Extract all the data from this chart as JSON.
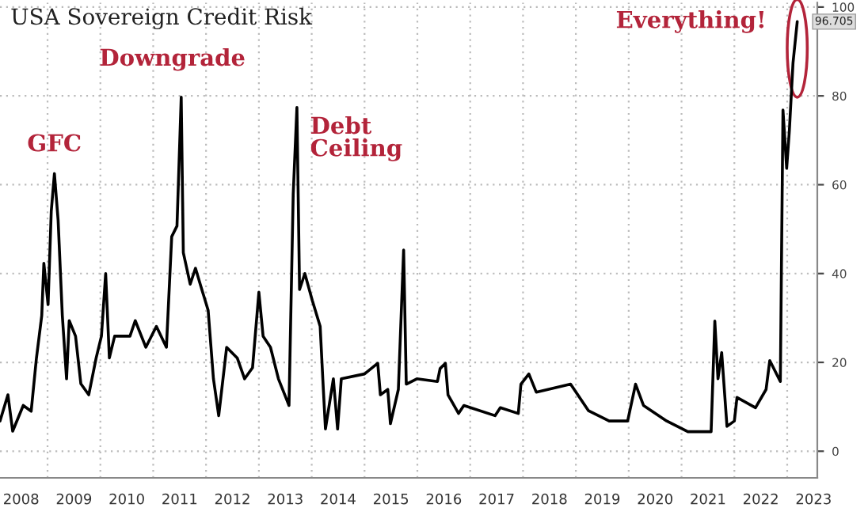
{
  "chart_data": {
    "type": "line",
    "title": "USA Sovereign Credit Risk",
    "x": [
      2008.1,
      2008.25,
      2008.34,
      2008.54,
      2008.69,
      2008.79,
      2008.89,
      2008.93,
      2009.01,
      2009.07,
      2009.13,
      2009.2,
      2009.28,
      2009.36,
      2009.41,
      2009.53,
      2009.63,
      2009.78,
      2009.92,
      2010.02,
      2010.1,
      2010.17,
      2010.27,
      2010.56,
      2010.66,
      2010.86,
      2011.06,
      2011.25,
      2011.35,
      2011.45,
      2011.53,
      2011.57,
      2011.7,
      2011.8,
      2011.89,
      2012.04,
      2012.14,
      2012.24,
      2012.39,
      2012.59,
      2012.73,
      2012.88,
      2013.0,
      2013.08,
      2013.22,
      2013.37,
      2013.57,
      2013.65,
      2013.72,
      2013.77,
      2013.87,
      2014.01,
      2014.16,
      2014.21,
      2014.26,
      2014.41,
      2014.49,
      2014.56,
      2015.0,
      2015.25,
      2015.3,
      2015.44,
      2015.49,
      2015.64,
      2015.74,
      2015.79,
      2015.99,
      2016.38,
      2016.43,
      2016.53,
      2016.58,
      2016.78,
      2016.88,
      2017.47,
      2017.57,
      2017.91,
      2017.96,
      2018.11,
      2018.25,
      2018.9,
      2019.24,
      2019.63,
      2019.98,
      2020.13,
      2020.28,
      2020.72,
      2021.12,
      2021.56,
      2021.63,
      2021.69,
      2021.76,
      2021.86,
      2022.0,
      2022.05,
      2022.4,
      2022.6,
      2022.67,
      2022.87,
      2022.92,
      2022.99,
      2023.04,
      2023.11,
      2023.19
    ],
    "series": [
      {
        "color": "#000000",
        "values": [
          6.8,
          12.7,
          4.5,
          10.3,
          9,
          21,
          30.5,
          42.3,
          33,
          54,
          62.5,
          52,
          30.5,
          16.3,
          29.4,
          25.9,
          15.2,
          12.7,
          21,
          25.9,
          40,
          21,
          25.9,
          25.9,
          29.4,
          23.4,
          28.1,
          23.4,
          48.3,
          50.7,
          79.7,
          44.7,
          37.6,
          41.2,
          37.6,
          31.7,
          16.3,
          8,
          23.4,
          21,
          16.3,
          18.8,
          35.8,
          25.9,
          23.4,
          16.3,
          10.3,
          57.9,
          77.4,
          36.4,
          40,
          34,
          28.1,
          16.3,
          5,
          16.3,
          5,
          16.3,
          17.4,
          19.8,
          12.7,
          13.9,
          6.2,
          13.9,
          45.3,
          15.1,
          16.3,
          15.7,
          18.6,
          19.8,
          12.7,
          8.5,
          10.3,
          8,
          9.8,
          8.5,
          15.1,
          17.4,
          13.3,
          15.1,
          9.1,
          6.8,
          6.8,
          15.1,
          10.3,
          6.8,
          4.4,
          4.4,
          29.3,
          16.3,
          22.2,
          5.6,
          6.8,
          12.1,
          9.8,
          13.9,
          20.4,
          15.7,
          76.8,
          63.7,
          72,
          87.4,
          96.705
        ]
      }
    ],
    "xlim": [
      2008.1,
      2023.57
    ],
    "xticks": [
      {
        "value": 2009,
        "label": null
      },
      {
        "value": 2010,
        "label": null
      },
      {
        "value": 2011,
        "label": null
      },
      {
        "value": 2012,
        "label": null
      },
      {
        "value": 2013,
        "label": null
      },
      {
        "value": 2014,
        "label": null
      },
      {
        "value": 2015,
        "label": null
      },
      {
        "value": 2016,
        "label": null
      },
      {
        "value": 2017,
        "label": null
      },
      {
        "value": 2018,
        "label": null
      },
      {
        "value": 2019,
        "label": null
      },
      {
        "value": 2020,
        "label": null
      },
      {
        "value": 2021,
        "label": null
      },
      {
        "value": 2022,
        "label": null
      },
      {
        "value": 2023,
        "label": null
      },
      {
        "value": 2008.5,
        "label": "2008"
      },
      {
        "value": 2009.5,
        "label": "2009"
      },
      {
        "value": 2010.5,
        "label": "2010"
      },
      {
        "value": 2011.5,
        "label": "2011"
      },
      {
        "value": 2012.5,
        "label": "2012"
      },
      {
        "value": 2013.5,
        "label": "2013"
      },
      {
        "value": 2014.5,
        "label": "2014"
      },
      {
        "value": 2015.5,
        "label": "2015"
      },
      {
        "value": 2016.5,
        "label": "2016"
      },
      {
        "value": 2017.5,
        "label": "2017"
      },
      {
        "value": 2018.5,
        "label": "2018"
      },
      {
        "value": 2019.5,
        "label": "2019"
      },
      {
        "value": 2020.5,
        "label": "2020"
      },
      {
        "value": 2021.5,
        "label": "2021"
      },
      {
        "value": 2022.5,
        "label": "2022"
      },
      {
        "value": 2023.5,
        "label": "2023"
      }
    ],
    "ylim": [
      -6,
      101
    ],
    "yticks": [
      0,
      20,
      40,
      60,
      80,
      100
    ],
    "grid": true,
    "annotations": [
      {
        "text": "GFC",
        "x": 2009.13,
        "y": 62.5
      },
      {
        "text": "Downgrade",
        "x": 2011.53,
        "y": 79.7
      },
      {
        "text": "Debt Ceiling",
        "x": 2013.72,
        "y": 77.4
      },
      {
        "text": "Everything!",
        "x": 2023.19,
        "y": 96.705
      },
      {
        "text": "96.705",
        "x": 2023.19,
        "y": 96.705
      }
    ]
  }
}
